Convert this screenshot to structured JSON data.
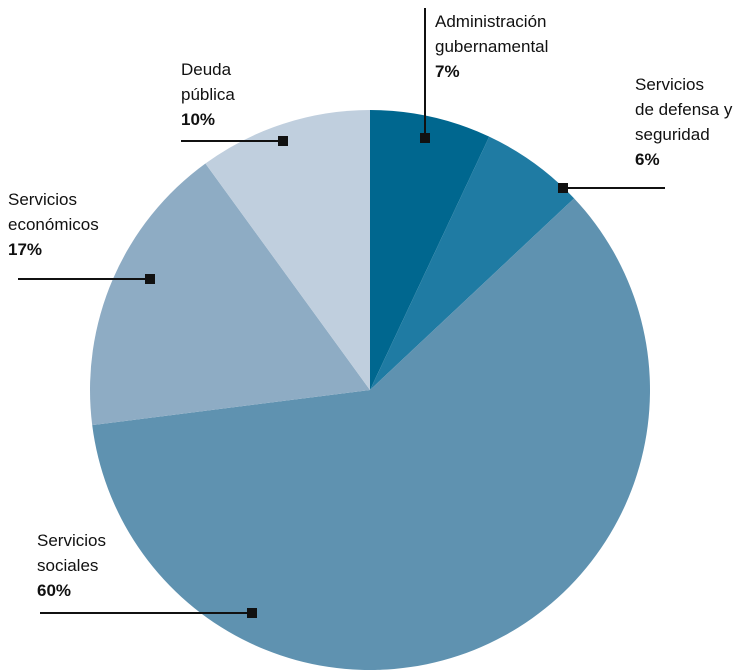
{
  "chart_data": {
    "type": "pie",
    "slices": [
      {
        "name": "Administración gubernamental",
        "label_lines": [
          "Administración",
          "gubernamental"
        ],
        "value": 7,
        "value_label": "7%",
        "color": "#00678f"
      },
      {
        "name": "Servicios de defensa y seguridad",
        "label_lines": [
          "Servicios",
          "de defensa y",
          "seguridad"
        ],
        "value": 6,
        "value_label": "6%",
        "color": "#1f7ba3"
      },
      {
        "name": "Servicios sociales",
        "label_lines": [
          "Servicios",
          "sociales"
        ],
        "value": 60,
        "value_label": "60%",
        "color": "#5f92b0"
      },
      {
        "name": "Servicios económicos",
        "label_lines": [
          "Servicios",
          "económicos"
        ],
        "value": 17,
        "value_label": "17%",
        "color": "#8eacc4"
      },
      {
        "name": "Deuda pública",
        "label_lines": [
          "Deuda",
          "pública"
        ],
        "value": 10,
        "value_label": "10%",
        "color": "#c0cfde"
      }
    ]
  }
}
